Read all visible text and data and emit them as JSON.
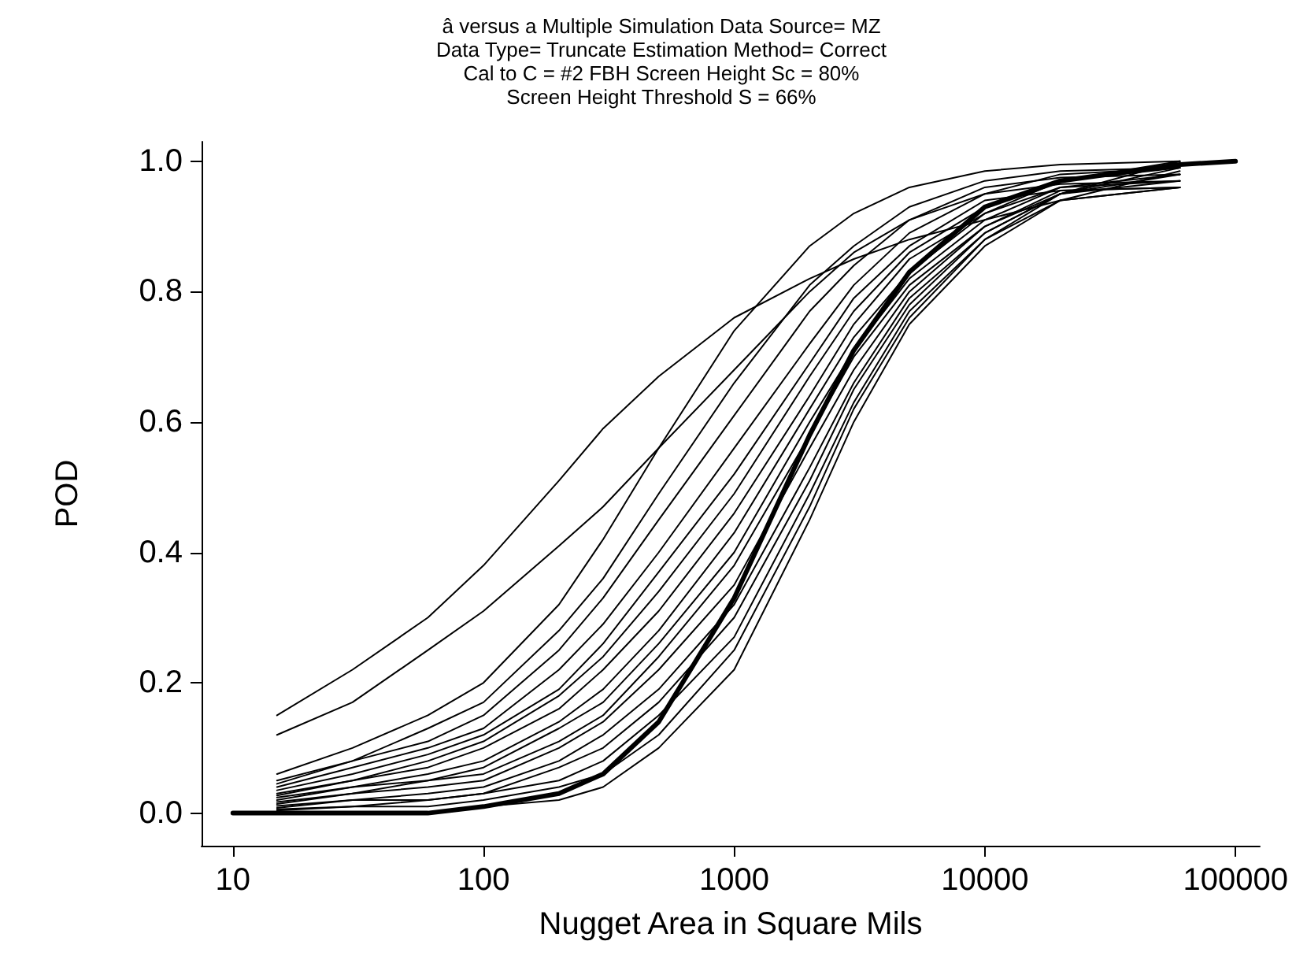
{
  "chart_data": {
    "type": "line",
    "title": "â versus a Multiple Simulation Data Source= MZ",
    "subtitle": "Data Type= Truncate Estimation Method= Correct\nCal to C = #2 FBH Screen Height Sc = 80%\nScreen Height Threshold S = 66%",
    "xlabel": "Nugget Area in Square Mils",
    "ylabel": "POD",
    "log": "x",
    "grid": false,
    "marker": "none",
    "line_style": "solid",
    "xlim": [
      7.5,
      125000
    ],
    "xticks": [
      10,
      100,
      1000,
      10000,
      100000
    ],
    "ylim": [
      -0.05,
      1.03
    ],
    "yticks": [
      {
        "value": 0,
        "label": "0.0"
      },
      {
        "value": 0.2,
        "label": "0.2"
      },
      {
        "value": 0.4,
        "label": "0.4"
      },
      {
        "value": 0.6,
        "label": "0.6"
      },
      {
        "value": 0.8,
        "label": "0.8"
      },
      {
        "value": 1,
        "label": "1.0"
      }
    ],
    "x": [
      15,
      30,
      60,
      100,
      200,
      300,
      500,
      1000,
      2000,
      3000,
      5000,
      10000,
      20000,
      60000
    ],
    "series": [
      {
        "color": "#000000",
        "values": [
          0.15,
          0.22,
          0.3,
          0.38,
          0.51,
          0.59,
          0.67,
          0.76,
          0.82,
          0.85,
          0.88,
          0.91,
          0.94,
          0.96
        ]
      },
      {
        "color": "#000000",
        "values": [
          0.12,
          0.17,
          0.25,
          0.31,
          0.41,
          0.47,
          0.56,
          0.68,
          0.8,
          0.86,
          0.91,
          0.95,
          0.98,
          0.99
        ]
      },
      {
        "color": "#000000",
        "values": [
          0.06,
          0.1,
          0.15,
          0.2,
          0.32,
          0.42,
          0.56,
          0.74,
          0.87,
          0.92,
          0.96,
          0.985,
          0.995,
          1.0
        ]
      },
      {
        "color": "#000000",
        "values": [
          0.05,
          0.08,
          0.13,
          0.17,
          0.28,
          0.36,
          0.49,
          0.66,
          0.81,
          0.87,
          0.93,
          0.97,
          0.985,
          0.99
        ]
      },
      {
        "color": "#000000",
        "values": [
          0.045,
          0.08,
          0.11,
          0.15,
          0.25,
          0.33,
          0.45,
          0.61,
          0.77,
          0.84,
          0.91,
          0.96,
          0.975,
          0.98
        ]
      },
      {
        "color": "#000000",
        "values": [
          0.04,
          0.07,
          0.1,
          0.13,
          0.22,
          0.29,
          0.4,
          0.56,
          0.72,
          0.81,
          0.89,
          0.95,
          0.965,
          0.97
        ]
      },
      {
        "color": "#000000",
        "values": [
          0.035,
          0.06,
          0.09,
          0.12,
          0.19,
          0.26,
          0.37,
          0.52,
          0.69,
          0.79,
          0.87,
          0.94,
          0.955,
          0.96
        ]
      },
      {
        "color": "#000000",
        "values": [
          0.03,
          0.05,
          0.08,
          0.11,
          0.18,
          0.24,
          0.34,
          0.49,
          0.67,
          0.77,
          0.86,
          0.93,
          0.97,
          1.0
        ]
      },
      {
        "color": "#000000",
        "values": [
          0.027,
          0.05,
          0.07,
          0.1,
          0.16,
          0.22,
          0.31,
          0.46,
          0.64,
          0.75,
          0.85,
          0.92,
          0.97,
          0.99
        ]
      },
      {
        "color": "#000000",
        "values": [
          0.024,
          0.04,
          0.06,
          0.08,
          0.14,
          0.19,
          0.28,
          0.43,
          0.62,
          0.73,
          0.83,
          0.92,
          0.96,
          0.98
        ]
      },
      {
        "color": "#000000",
        "values": [
          0.02,
          0.04,
          0.05,
          0.07,
          0.13,
          0.17,
          0.26,
          0.4,
          0.6,
          0.71,
          0.82,
          0.91,
          0.96,
          0.97
        ]
      },
      {
        "color": "#000000",
        "values": [
          0.017,
          0.03,
          0.05,
          0.06,
          0.11,
          0.15,
          0.24,
          0.38,
          0.58,
          0.7,
          0.81,
          0.9,
          0.955,
          0.96
        ]
      },
      {
        "color": "#000000",
        "values": [
          0.014,
          0.03,
          0.04,
          0.05,
          0.1,
          0.14,
          0.22,
          0.35,
          0.56,
          0.68,
          0.8,
          0.9,
          0.95,
          1.0
        ]
      },
      {
        "color": "#000000",
        "values": [
          0.011,
          0.02,
          0.03,
          0.04,
          0.08,
          0.12,
          0.19,
          0.32,
          0.53,
          0.66,
          0.79,
          0.89,
          0.95,
          0.99
        ]
      },
      {
        "color": "#000000",
        "values": [
          0.008,
          0.02,
          0.02,
          0.03,
          0.07,
          0.1,
          0.17,
          0.3,
          0.51,
          0.65,
          0.78,
          0.89,
          0.95,
          0.98
        ]
      },
      {
        "color": "#000000",
        "values": [
          0.006,
          0.01,
          0.02,
          0.03,
          0.05,
          0.08,
          0.15,
          0.27,
          0.49,
          0.63,
          0.77,
          0.88,
          0.95,
          0.97
        ]
      },
      {
        "color": "#000000",
        "values": [
          0.004,
          0.01,
          0.01,
          0.02,
          0.04,
          0.06,
          0.12,
          0.25,
          0.47,
          0.62,
          0.76,
          0.88,
          0.94,
          0.96
        ]
      },
      {
        "color": "#000000",
        "values": [
          0.0,
          0.0,
          0.0,
          0.01,
          0.02,
          0.04,
          0.1,
          0.22,
          0.45,
          0.6,
          0.75,
          0.87,
          0.94,
          0.985
        ]
      },
      {
        "color": "#000000",
        "x": [
          10,
          15,
          30,
          60,
          100,
          200,
          300,
          500,
          1000,
          2000,
          3000,
          5000,
          10000,
          20000,
          60000,
          100000
        ],
        "values": [
          0.0,
          0.0,
          0.0,
          0.0,
          0.01,
          0.03,
          0.06,
          0.14,
          0.33,
          0.58,
          0.71,
          0.83,
          0.93,
          0.97,
          0.995,
          1.0
        ]
      }
    ]
  }
}
